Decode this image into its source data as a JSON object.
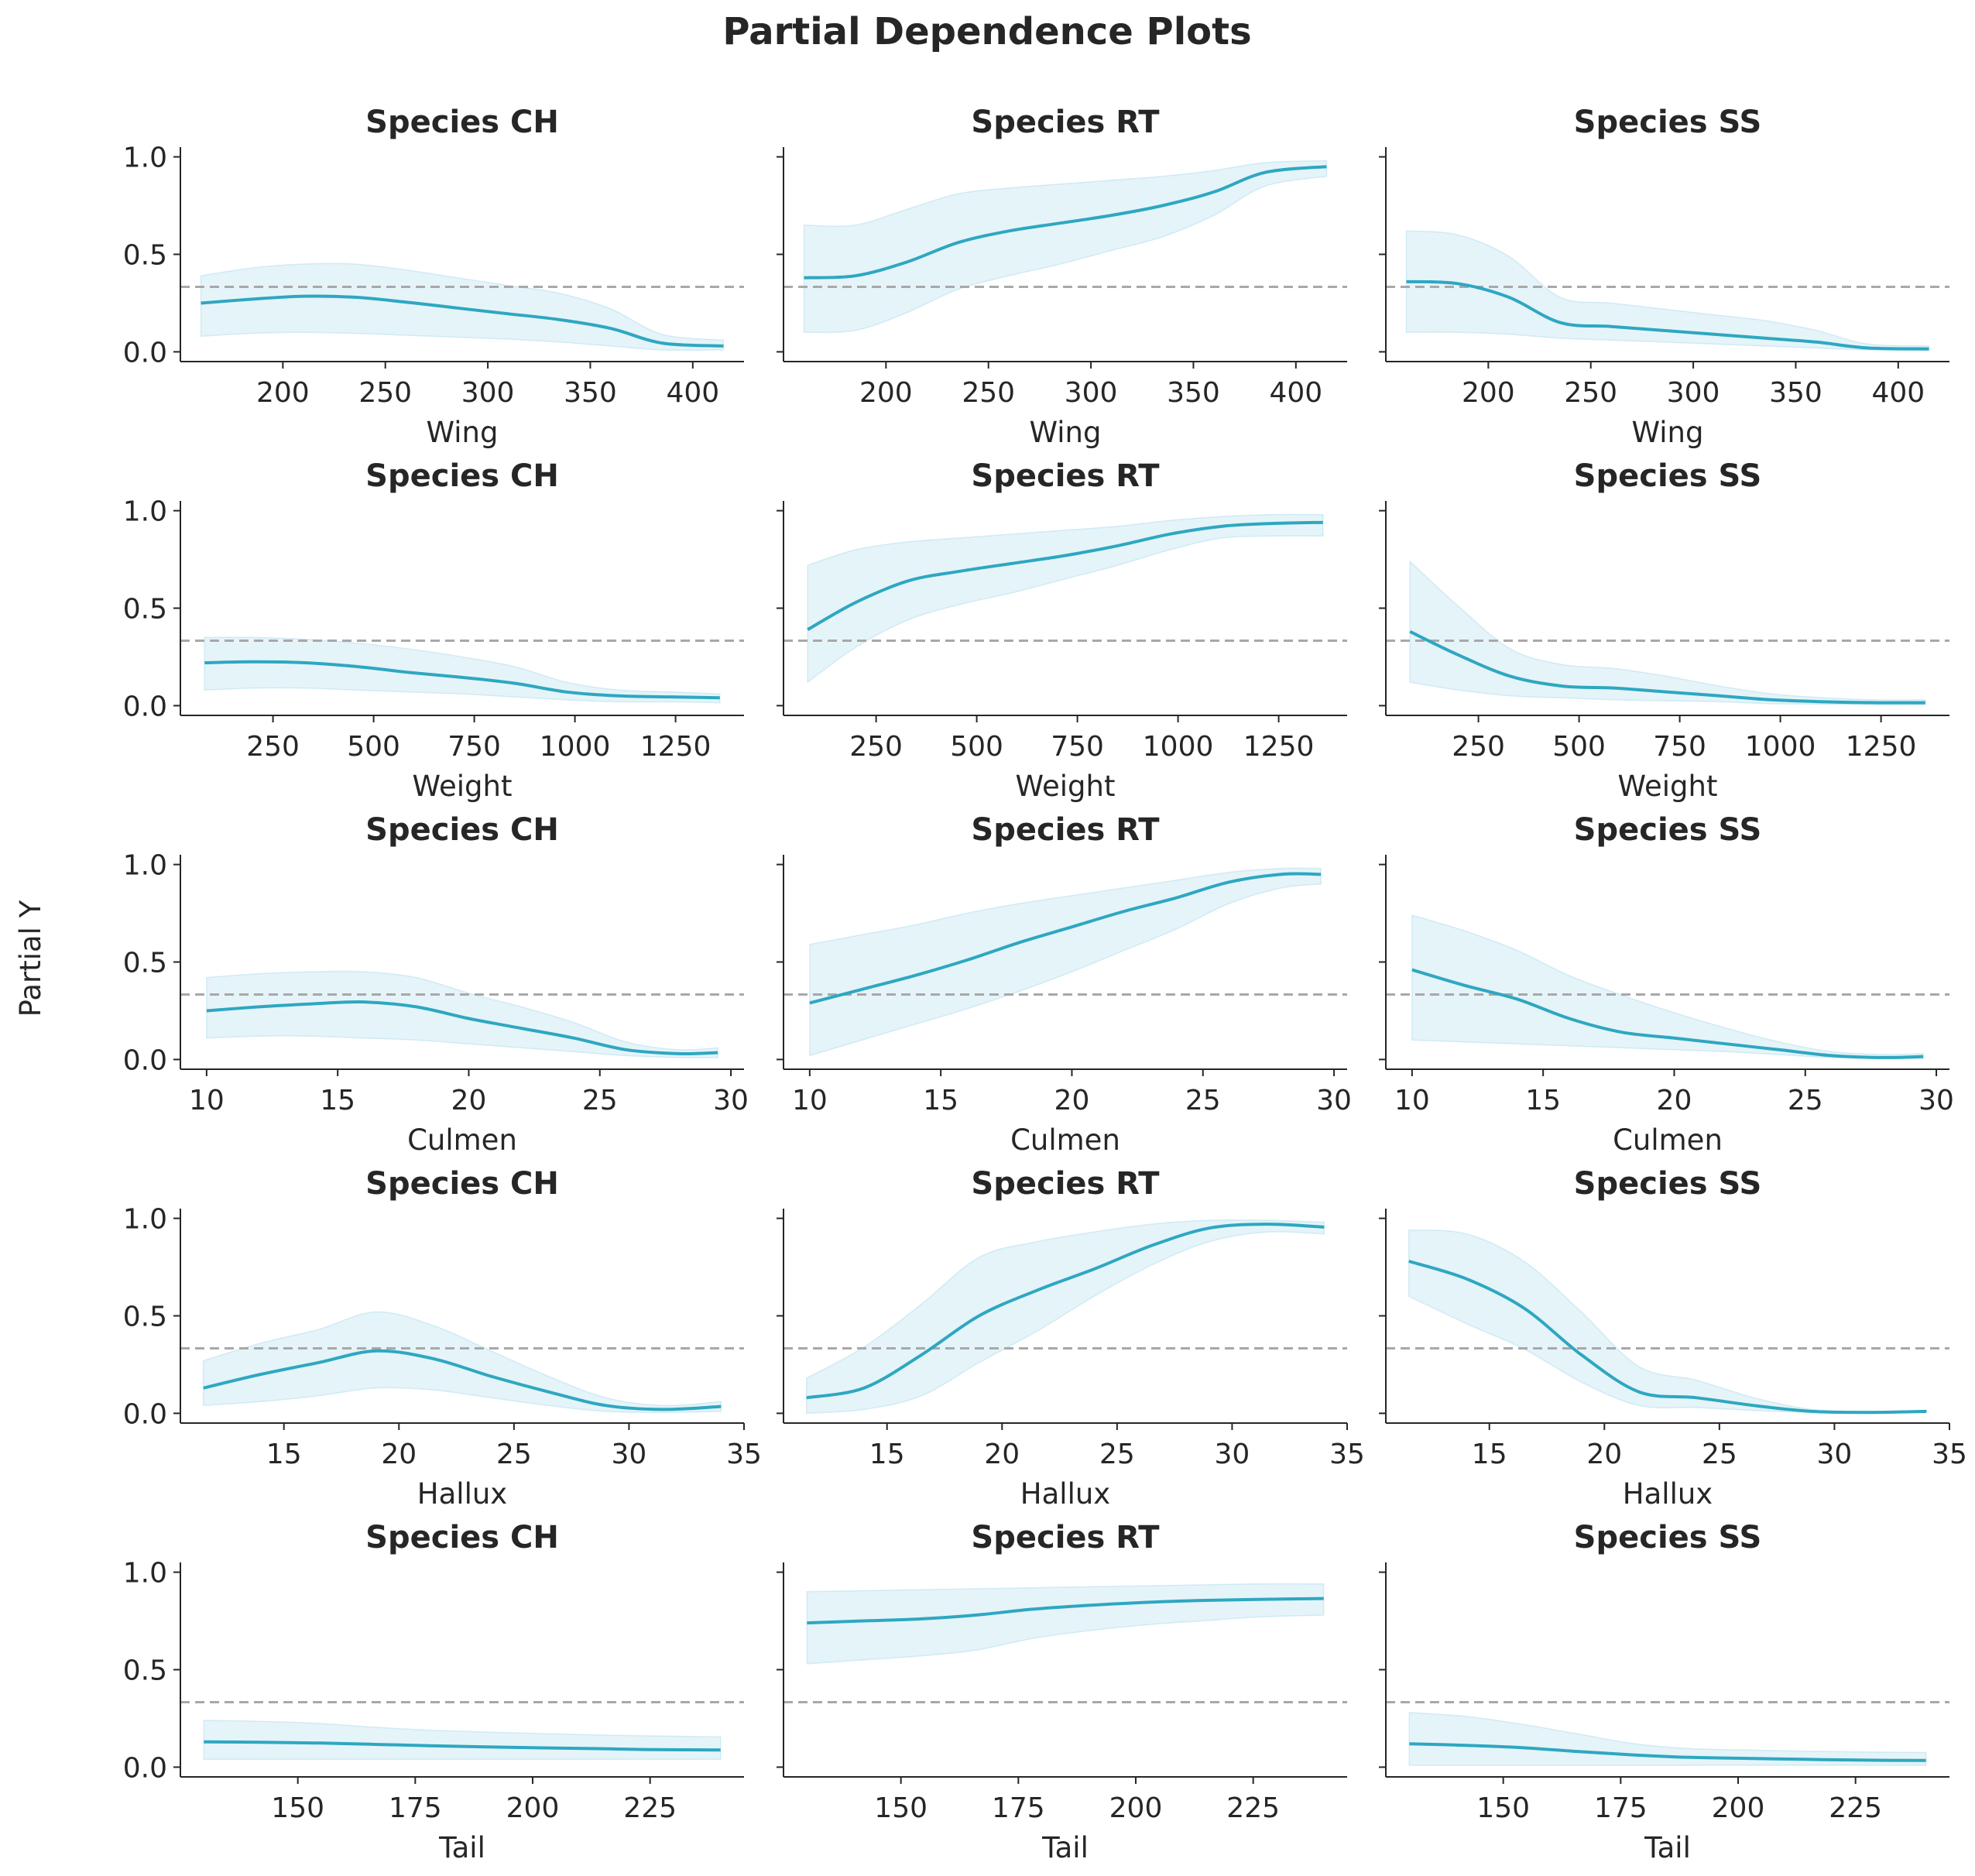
{
  "title": "Partial Dependence Plots",
  "ylabel": "Partial Y",
  "colors": {
    "line": "#2ea7c1",
    "band": "#a9daec",
    "reference": "#a8a8a8",
    "text": "#262626"
  },
  "chart_data": {
    "type": "line",
    "layout": {
      "rows": 5,
      "cols": 3
    },
    "reference_line_y": 0.333,
    "ylim": [
      -0.05,
      1.05
    ],
    "yticks": [
      0.0,
      0.5,
      1.0
    ],
    "ytick_labels": [
      "0.0",
      "0.5",
      "1.0"
    ],
    "rows": [
      {
        "xlabel": "Wing",
        "x": [
          160,
          185,
          210,
          235,
          260,
          285,
          310,
          335,
          360,
          385,
          415
        ],
        "xlim": [
          150,
          425
        ],
        "xticks": [
          200,
          250,
          300,
          350,
          400
        ],
        "panels": [
          {
            "title": "Species CH",
            "y": [
              0.25,
              0.27,
              0.285,
              0.28,
              0.255,
              0.225,
              0.195,
              0.165,
              0.12,
              0.045,
              0.03
            ],
            "lower": [
              0.08,
              0.095,
              0.1,
              0.095,
              0.085,
              0.075,
              0.065,
              0.05,
              0.03,
              0.01,
              0.01
            ],
            "upper": [
              0.39,
              0.43,
              0.45,
              0.45,
              0.42,
              0.38,
              0.34,
              0.3,
              0.22,
              0.09,
              0.06
            ]
          },
          {
            "title": "Species RT",
            "y": [
              0.38,
              0.39,
              0.46,
              0.56,
              0.62,
              0.66,
              0.7,
              0.75,
              0.82,
              0.92,
              0.95
            ],
            "lower": [
              0.1,
              0.11,
              0.2,
              0.32,
              0.39,
              0.45,
              0.52,
              0.59,
              0.7,
              0.85,
              0.9
            ],
            "upper": [
              0.65,
              0.65,
              0.73,
              0.81,
              0.84,
              0.86,
              0.88,
              0.9,
              0.93,
              0.97,
              0.98
            ]
          },
          {
            "title": "Species SS",
            "y": [
              0.36,
              0.35,
              0.28,
              0.15,
              0.13,
              0.11,
              0.09,
              0.07,
              0.05,
              0.02,
              0.015
            ],
            "lower": [
              0.1,
              0.1,
              0.09,
              0.07,
              0.06,
              0.05,
              0.04,
              0.03,
              0.02,
              0.01,
              0.005
            ],
            "upper": [
              0.62,
              0.6,
              0.49,
              0.28,
              0.25,
              0.22,
              0.19,
              0.16,
              0.11,
              0.04,
              0.03
            ]
          }
        ]
      },
      {
        "xlabel": "Weight",
        "x": [
          80,
          200,
          330,
          460,
          590,
          720,
          850,
          980,
          1110,
          1240,
          1360
        ],
        "xlim": [
          20,
          1420
        ],
        "xticks": [
          250,
          500,
          750,
          1000,
          1250
        ],
        "panels": [
          {
            "title": "Species CH",
            "y": [
              0.22,
              0.225,
              0.22,
              0.2,
              0.17,
              0.145,
              0.115,
              0.07,
              0.05,
              0.045,
              0.04
            ],
            "lower": [
              0.08,
              0.09,
              0.09,
              0.08,
              0.07,
              0.06,
              0.045,
              0.03,
              0.02,
              0.02,
              0.015
            ],
            "upper": [
              0.35,
              0.35,
              0.34,
              0.32,
              0.29,
              0.25,
              0.2,
              0.12,
              0.08,
              0.07,
              0.06
            ]
          },
          {
            "title": "Species RT",
            "y": [
              0.39,
              0.53,
              0.64,
              0.69,
              0.73,
              0.77,
              0.82,
              0.88,
              0.92,
              0.935,
              0.94
            ],
            "lower": [
              0.12,
              0.3,
              0.44,
              0.52,
              0.58,
              0.65,
              0.72,
              0.8,
              0.86,
              0.87,
              0.87
            ],
            "upper": [
              0.72,
              0.8,
              0.84,
              0.86,
              0.88,
              0.9,
              0.92,
              0.95,
              0.97,
              0.98,
              0.98
            ]
          },
          {
            "title": "Species SS",
            "y": [
              0.38,
              0.26,
              0.15,
              0.1,
              0.09,
              0.07,
              0.05,
              0.03,
              0.02,
              0.015,
              0.015
            ],
            "lower": [
              0.12,
              0.08,
              0.05,
              0.04,
              0.03,
              0.025,
              0.02,
              0.01,
              0.008,
              0.005,
              0.005
            ],
            "upper": [
              0.74,
              0.51,
              0.29,
              0.21,
              0.19,
              0.15,
              0.1,
              0.06,
              0.04,
              0.03,
              0.03
            ]
          }
        ]
      },
      {
        "xlabel": "Culmen",
        "x": [
          10,
          12,
          14,
          16,
          18,
          20,
          22,
          24,
          26,
          28,
          29.5
        ],
        "xlim": [
          9,
          30.5
        ],
        "xticks": [
          10,
          15,
          20,
          25,
          30
        ],
        "panels": [
          {
            "title": "Species CH",
            "y": [
              0.25,
              0.27,
              0.285,
              0.295,
              0.27,
              0.21,
              0.16,
              0.11,
              0.05,
              0.03,
              0.035
            ],
            "lower": [
              0.11,
              0.12,
              0.12,
              0.11,
              0.1,
              0.08,
              0.06,
              0.04,
              0.02,
              0.01,
              0.01
            ],
            "upper": [
              0.42,
              0.44,
              0.45,
              0.45,
              0.42,
              0.34,
              0.27,
              0.19,
              0.09,
              0.05,
              0.06
            ]
          },
          {
            "title": "Species RT",
            "y": [
              0.29,
              0.36,
              0.43,
              0.51,
              0.6,
              0.68,
              0.76,
              0.83,
              0.91,
              0.95,
              0.95
            ],
            "lower": [
              0.02,
              0.1,
              0.18,
              0.26,
              0.35,
              0.45,
              0.56,
              0.67,
              0.8,
              0.88,
              0.9
            ],
            "upper": [
              0.59,
              0.64,
              0.69,
              0.75,
              0.8,
              0.84,
              0.88,
              0.92,
              0.96,
              0.98,
              0.98
            ]
          },
          {
            "title": "Species SS",
            "y": [
              0.46,
              0.38,
              0.31,
              0.21,
              0.14,
              0.11,
              0.08,
              0.05,
              0.02,
              0.01,
              0.015
            ],
            "lower": [
              0.1,
              0.09,
              0.08,
              0.07,
              0.06,
              0.05,
              0.04,
              0.025,
              0.01,
              0.005,
              0.005
            ],
            "upper": [
              0.74,
              0.66,
              0.56,
              0.43,
              0.33,
              0.24,
              0.16,
              0.09,
              0.04,
              0.025,
              0.03
            ]
          }
        ]
      },
      {
        "xlabel": "Hallux",
        "x": [
          11.5,
          14,
          16.5,
          19,
          21.5,
          24,
          26.5,
          29,
          31.5,
          34
        ],
        "xlim": [
          10.5,
          35
        ],
        "xticks": [
          15,
          20,
          25,
          30,
          35
        ],
        "panels": [
          {
            "title": "Species CH",
            "y": [
              0.13,
              0.2,
              0.26,
              0.32,
              0.28,
              0.19,
              0.11,
              0.04,
              0.02,
              0.035
            ],
            "lower": [
              0.04,
              0.06,
              0.09,
              0.13,
              0.12,
              0.08,
              0.04,
              0.01,
              0.005,
              0.01
            ],
            "upper": [
              0.27,
              0.36,
              0.43,
              0.52,
              0.45,
              0.32,
              0.19,
              0.08,
              0.04,
              0.06
            ]
          },
          {
            "title": "Species RT",
            "y": [
              0.08,
              0.13,
              0.3,
              0.5,
              0.63,
              0.74,
              0.86,
              0.95,
              0.97,
              0.955
            ],
            "lower": [
              0.0,
              0.02,
              0.09,
              0.26,
              0.42,
              0.6,
              0.76,
              0.88,
              0.93,
              0.92
            ],
            "upper": [
              0.18,
              0.34,
              0.56,
              0.8,
              0.88,
              0.93,
              0.97,
              0.99,
              0.99,
              0.98
            ]
          },
          {
            "title": "Species SS",
            "y": [
              0.78,
              0.69,
              0.54,
              0.3,
              0.11,
              0.08,
              0.04,
              0.01,
              0.005,
              0.01
            ],
            "lower": [
              0.6,
              0.46,
              0.33,
              0.16,
              0.04,
              0.03,
              0.015,
              0.005,
              0.002,
              0.005
            ],
            "upper": [
              0.94,
              0.92,
              0.78,
              0.52,
              0.24,
              0.17,
              0.08,
              0.02,
              0.01,
              0.015
            ]
          }
        ]
      },
      {
        "xlabel": "Tail",
        "x": [
          130,
          142,
          154,
          166,
          178,
          190,
          202,
          214,
          226,
          240
        ],
        "xlim": [
          125,
          245
        ],
        "xticks": [
          150,
          175,
          200,
          225
        ],
        "panels": [
          {
            "title": "Species CH",
            "y": [
              0.13,
              0.128,
              0.124,
              0.117,
              0.11,
              0.104,
              0.099,
              0.095,
              0.09,
              0.088
            ],
            "lower": [
              0.04,
              0.04,
              0.04,
              0.04,
              0.04,
              0.04,
              0.04,
              0.04,
              0.04,
              0.04
            ],
            "upper": [
              0.24,
              0.235,
              0.225,
              0.205,
              0.19,
              0.18,
              0.172,
              0.165,
              0.16,
              0.155
            ]
          },
          {
            "title": "Species RT",
            "y": [
              0.74,
              0.75,
              0.76,
              0.78,
              0.81,
              0.83,
              0.845,
              0.855,
              0.86,
              0.865
            ],
            "lower": [
              0.53,
              0.55,
              0.57,
              0.6,
              0.66,
              0.7,
              0.73,
              0.75,
              0.77,
              0.78
            ],
            "upper": [
              0.9,
              0.905,
              0.91,
              0.915,
              0.92,
              0.925,
              0.93,
              0.935,
              0.94,
              0.94
            ]
          },
          {
            "title": "Species SS",
            "y": [
              0.12,
              0.112,
              0.1,
              0.08,
              0.062,
              0.05,
              0.045,
              0.04,
              0.036,
              0.034
            ],
            "lower": [
              0.01,
              0.01,
              0.01,
              0.01,
              0.01,
              0.01,
              0.01,
              0.01,
              0.01,
              0.01
            ],
            "upper": [
              0.28,
              0.26,
              0.22,
              0.17,
              0.12,
              0.095,
              0.088,
              0.082,
              0.078,
              0.075
            ]
          }
        ]
      }
    ]
  }
}
